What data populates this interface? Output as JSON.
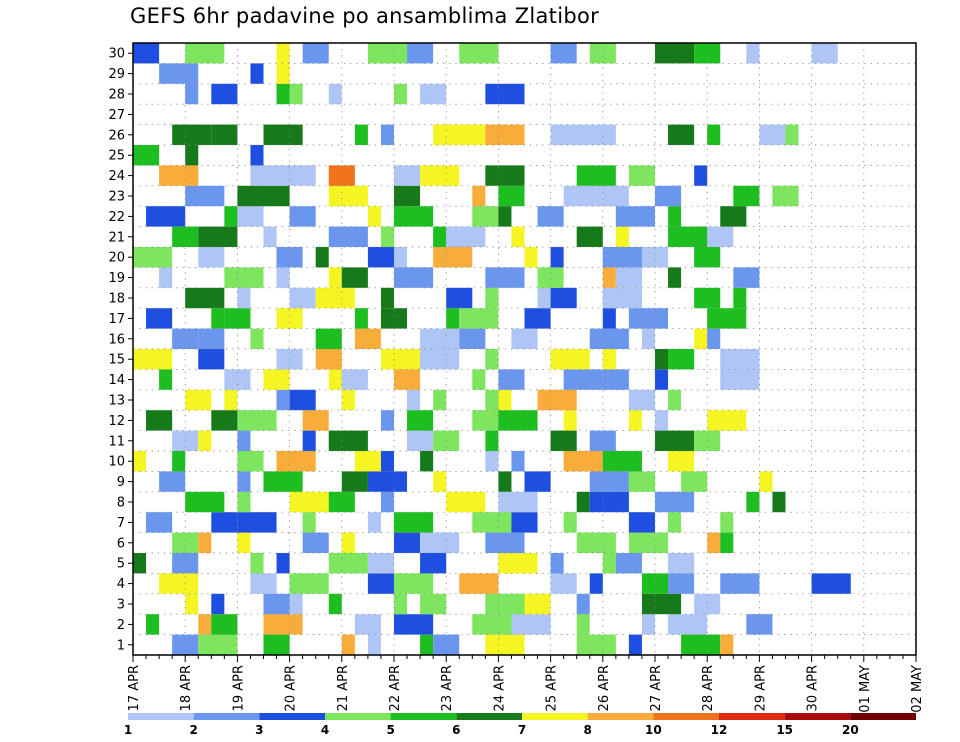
{
  "title": "GEFS 6hr padavine po ansamblima Zlatibor",
  "chart_data": {
    "type": "heatmap",
    "title": "GEFS 6hr padavine po ansamblima Zlatibor",
    "y_ticks": [
      "1",
      "2",
      "3",
      "4",
      "5",
      "6",
      "7",
      "8",
      "9",
      "10",
      "11",
      "12",
      "13",
      "14",
      "15",
      "16",
      "17",
      "18",
      "19",
      "20",
      "21",
      "22",
      "23",
      "24",
      "25",
      "26",
      "27",
      "28",
      "29",
      "30"
    ],
    "x_ticks": [
      "17 APR",
      "18 APR",
      "19 APR",
      "20 APR",
      "21 APR",
      "22 APR",
      "23 APR",
      "24 APR",
      "25 APR",
      "26 APR",
      "27 APR",
      "28 APR",
      "29 APR",
      "30 APR",
      "01 MAY",
      "02 MAY"
    ],
    "y_range": [
      0,
      30
    ],
    "x_range": [
      0,
      60
    ],
    "grid": true,
    "colorbar": {
      "labels": [
        "1",
        "2",
        "3",
        "4",
        "5",
        "6",
        "7",
        "8",
        "10",
        "12",
        "15",
        "20"
      ],
      "colors": [
        "#aec5f5",
        "#6b96ee",
        "#1f4fe0",
        "#7de55e",
        "#1cbe20",
        "#167a1a",
        "#f5f523",
        "#f8ad3a",
        "#f07319",
        "#e02a12",
        "#a80b0b",
        "#700000"
      ]
    },
    "cells": [
      [
        2,
        30,
        2
      ],
      [
        3,
        30,
        3
      ],
      [
        1,
        30,
        6
      ],
      [
        2,
        30,
        1
      ],
      [
        3,
        30,
        3
      ],
      [
        2,
        30,
        1
      ],
      [
        3,
        30,
        3
      ],
      [
        2,
        30,
        1
      ],
      [
        2,
        30,
        3
      ],
      [
        3,
        30,
        5
      ],
      [
        2,
        30,
        4
      ],
      [
        1,
        30,
        0
      ],
      [
        2,
        30,
        0
      ],
      [
        3,
        29,
        1
      ],
      [
        1,
        29,
        2
      ],
      [
        1,
        29,
        6
      ],
      [
        1,
        28,
        1
      ],
      [
        2,
        28,
        2
      ],
      [
        1,
        28,
        4
      ],
      [
        1,
        28,
        3
      ],
      [
        1,
        28,
        0
      ],
      [
        1,
        28,
        3
      ],
      [
        2,
        28,
        0
      ],
      [
        3,
        28,
        2
      ],
      [
        3,
        26,
        5
      ],
      [
        2,
        26,
        5
      ],
      [
        3,
        26,
        5
      ],
      [
        1,
        26,
        4
      ],
      [
        1,
        26,
        1
      ],
      [
        4,
        26,
        6
      ],
      [
        3,
        26,
        7
      ],
      [
        5,
        26,
        0
      ],
      [
        2,
        26,
        5
      ],
      [
        1,
        26,
        4
      ],
      [
        2,
        26,
        0
      ],
      [
        1,
        26,
        3
      ],
      [
        2,
        25,
        4
      ],
      [
        1,
        25,
        5
      ],
      [
        1,
        25,
        2
      ],
      [
        3,
        24,
        7
      ],
      [
        5,
        24,
        0
      ],
      [
        2,
        24,
        8
      ],
      [
        2,
        24,
        0
      ],
      [
        3,
        24,
        6
      ],
      [
        3,
        24,
        5
      ],
      [
        3,
        24,
        4
      ],
      [
        2,
        24,
        3
      ],
      [
        1,
        24,
        2
      ],
      [
        3,
        23,
        1
      ],
      [
        4,
        23,
        5
      ],
      [
        1,
        23,
        6
      ],
      [
        2,
        23,
        6
      ],
      [
        2,
        23,
        5
      ],
      [
        1,
        23,
        7
      ],
      [
        2,
        23,
        4
      ],
      [
        3,
        23,
        0
      ],
      [
        2,
        23,
        0
      ],
      [
        2,
        23,
        1
      ],
      [
        2,
        23,
        4
      ],
      [
        2,
        23,
        3
      ],
      [
        3,
        22,
        2
      ],
      [
        1,
        22,
        4
      ],
      [
        2,
        22,
        0
      ],
      [
        2,
        22,
        1
      ],
      [
        1,
        22,
        6
      ],
      [
        3,
        22,
        4
      ],
      [
        2,
        22,
        3
      ],
      [
        1,
        22,
        5
      ],
      [
        2,
        22,
        1
      ],
      [
        3,
        22,
        1
      ],
      [
        1,
        22,
        4
      ],
      [
        2,
        22,
        5
      ],
      [
        2,
        21,
        4
      ],
      [
        3,
        21,
        5
      ],
      [
        1,
        21,
        0
      ],
      [
        3,
        21,
        1
      ],
      [
        1,
        21,
        3
      ],
      [
        1,
        21,
        4
      ],
      [
        3,
        21,
        0
      ],
      [
        1,
        21,
        6
      ],
      [
        2,
        21,
        5
      ],
      [
        1,
        21,
        6
      ],
      [
        3,
        21,
        4
      ],
      [
        2,
        21,
        0
      ],
      [
        3,
        20,
        3
      ],
      [
        2,
        20,
        0
      ],
      [
        2,
        20,
        1
      ],
      [
        1,
        20,
        5
      ],
      [
        2,
        20,
        2
      ],
      [
        1,
        20,
        0
      ],
      [
        3,
        20,
        7
      ],
      [
        1,
        20,
        6
      ],
      [
        1,
        20,
        2
      ],
      [
        3,
        20,
        1
      ],
      [
        2,
        20,
        0
      ],
      [
        2,
        20,
        4
      ],
      [
        1,
        19,
        0
      ],
      [
        3,
        19,
        3
      ],
      [
        1,
        19,
        0
      ],
      [
        1,
        19,
        6
      ],
      [
        2,
        19,
        5
      ],
      [
        3,
        19,
        1
      ],
      [
        3,
        19,
        1
      ],
      [
        2,
        19,
        3
      ],
      [
        1,
        19,
        7
      ],
      [
        2,
        19,
        0
      ],
      [
        1,
        19,
        5
      ],
      [
        2,
        19,
        1
      ],
      [
        3,
        18,
        5
      ],
      [
        1,
        18,
        0
      ],
      [
        2,
        18,
        0
      ],
      [
        3,
        18,
        6
      ],
      [
        1,
        18,
        5
      ],
      [
        2,
        18,
        2
      ],
      [
        1,
        18,
        3
      ],
      [
        1,
        18,
        0
      ],
      [
        2,
        18,
        2
      ],
      [
        3,
        18,
        0
      ],
      [
        2,
        18,
        4
      ],
      [
        1,
        18,
        4
      ],
      [
        2,
        17,
        2
      ],
      [
        1,
        17,
        4
      ],
      [
        2,
        17,
        4
      ],
      [
        2,
        17,
        6
      ],
      [
        1,
        17,
        4
      ],
      [
        2,
        17,
        5
      ],
      [
        1,
        17,
        4
      ],
      [
        3,
        17,
        3
      ],
      [
        2,
        17,
        2
      ],
      [
        1,
        17,
        2
      ],
      [
        3,
        17,
        1
      ],
      [
        3,
        17,
        4
      ],
      [
        2,
        16,
        1
      ],
      [
        2,
        16,
        1
      ],
      [
        1,
        16,
        3
      ],
      [
        2,
        16,
        4
      ],
      [
        2,
        16,
        7
      ],
      [
        3,
        16,
        0
      ],
      [
        2,
        16,
        1
      ],
      [
        2,
        16,
        0
      ],
      [
        3,
        16,
        1
      ],
      [
        1,
        16,
        0
      ],
      [
        1,
        16,
        6
      ],
      [
        1,
        16,
        1
      ],
      [
        3,
        15,
        6
      ],
      [
        2,
        15,
        2
      ],
      [
        2,
        15,
        0
      ],
      [
        2,
        15,
        7
      ],
      [
        3,
        15,
        6
      ],
      [
        3,
        15,
        0
      ],
      [
        1,
        15,
        3
      ],
      [
        3,
        15,
        6
      ],
      [
        1,
        15,
        6
      ],
      [
        1,
        15,
        5
      ],
      [
        2,
        15,
        4
      ],
      [
        3,
        15,
        0
      ],
      [
        1,
        14,
        4
      ],
      [
        2,
        14,
        0
      ],
      [
        2,
        14,
        6
      ],
      [
        1,
        14,
        6
      ],
      [
        2,
        14,
        0
      ],
      [
        2,
        14,
        7
      ],
      [
        1,
        14,
        3
      ],
      [
        2,
        14,
        1
      ],
      [
        3,
        14,
        1
      ],
      [
        2,
        14,
        1
      ],
      [
        1,
        14,
        2
      ],
      [
        3,
        14,
        0
      ],
      [
        2,
        13,
        6
      ],
      [
        1,
        13,
        6
      ],
      [
        1,
        13,
        1
      ],
      [
        2,
        13,
        2
      ],
      [
        1,
        13,
        6
      ],
      [
        1,
        13,
        0
      ],
      [
        1,
        13,
        3
      ],
      [
        1,
        13,
        3
      ],
      [
        1,
        13,
        6
      ],
      [
        3,
        13,
        7
      ],
      [
        2,
        13,
        0
      ],
      [
        1,
        13,
        3
      ],
      [
        2,
        12,
        5
      ],
      [
        2,
        12,
        5
      ],
      [
        3,
        12,
        3
      ],
      [
        2,
        12,
        7
      ],
      [
        1,
        12,
        1
      ],
      [
        2,
        12,
        4
      ],
      [
        2,
        12,
        3
      ],
      [
        3,
        12,
        4
      ],
      [
        1,
        12,
        6
      ],
      [
        1,
        12,
        6
      ],
      [
        1,
        12,
        0
      ],
      [
        3,
        12,
        6
      ],
      [
        2,
        11,
        0
      ],
      [
        1,
        11,
        6
      ],
      [
        1,
        11,
        1
      ],
      [
        1,
        11,
        2
      ],
      [
        3,
        11,
        5
      ],
      [
        2,
        11,
        0
      ],
      [
        2,
        11,
        3
      ],
      [
        1,
        11,
        4
      ],
      [
        2,
        11,
        5
      ],
      [
        2,
        11,
        1
      ],
      [
        3,
        11,
        5
      ],
      [
        2,
        11,
        3
      ],
      [
        1,
        10,
        6
      ],
      [
        1,
        10,
        4
      ],
      [
        2,
        10,
        3
      ],
      [
        3,
        10,
        7
      ],
      [
        2,
        10,
        6
      ],
      [
        1,
        10,
        2
      ],
      [
        1,
        10,
        5
      ],
      [
        1,
        10,
        0
      ],
      [
        1,
        10,
        1
      ],
      [
        3,
        10,
        7
      ],
      [
        3,
        10,
        4
      ],
      [
        2,
        10,
        6
      ],
      [
        2,
        9,
        1
      ],
      [
        1,
        9,
        1
      ],
      [
        3,
        9,
        4
      ],
      [
        2,
        9,
        5
      ],
      [
        3,
        9,
        2
      ],
      [
        1,
        9,
        6
      ],
      [
        1,
        9,
        5
      ],
      [
        2,
        9,
        2
      ],
      [
        3,
        9,
        1
      ],
      [
        2,
        9,
        3
      ],
      [
        2,
        9,
        3
      ],
      [
        1,
        9,
        6
      ],
      [
        3,
        8,
        4
      ],
      [
        1,
        8,
        3
      ],
      [
        3,
        8,
        6
      ],
      [
        2,
        8,
        4
      ],
      [
        1,
        8,
        1
      ],
      [
        3,
        8,
        6
      ],
      [
        3,
        8,
        0
      ],
      [
        1,
        8,
        5
      ],
      [
        3,
        8,
        2
      ],
      [
        3,
        8,
        1
      ],
      [
        1,
        8,
        4
      ],
      [
        1,
        8,
        5
      ],
      [
        2,
        7,
        1
      ],
      [
        2,
        7,
        2
      ],
      [
        3,
        7,
        2
      ],
      [
        1,
        7,
        3
      ],
      [
        1,
        7,
        0
      ],
      [
        3,
        7,
        4
      ],
      [
        3,
        7,
        3
      ],
      [
        2,
        7,
        2
      ],
      [
        1,
        7,
        3
      ],
      [
        2,
        7,
        2
      ],
      [
        1,
        7,
        3
      ],
      [
        1,
        7,
        3
      ],
      [
        2,
        6,
        3
      ],
      [
        1,
        6,
        7
      ],
      [
        1,
        6,
        6
      ],
      [
        2,
        6,
        1
      ],
      [
        1,
        6,
        6
      ],
      [
        2,
        6,
        2
      ],
      [
        3,
        6,
        0
      ],
      [
        3,
        6,
        1
      ],
      [
        3,
        6,
        3
      ],
      [
        3,
        6,
        3
      ],
      [
        1,
        6,
        7
      ],
      [
        1,
        6,
        4
      ],
      [
        1,
        5,
        5
      ],
      [
        2,
        5,
        1
      ],
      [
        1,
        5,
        3
      ],
      [
        1,
        5,
        2
      ],
      [
        3,
        5,
        3
      ],
      [
        2,
        5,
        0
      ],
      [
        2,
        5,
        2
      ],
      [
        3,
        5,
        6
      ],
      [
        1,
        5,
        1
      ],
      [
        1,
        5,
        3
      ],
      [
        2,
        5,
        1
      ],
      [
        2,
        5,
        0
      ],
      [
        3,
        4,
        6
      ],
      [
        2,
        4,
        0
      ],
      [
        3,
        4,
        3
      ],
      [
        2,
        4,
        2
      ],
      [
        3,
        4,
        3
      ],
      [
        3,
        4,
        7
      ],
      [
        2,
        4,
        0
      ],
      [
        1,
        4,
        2
      ],
      [
        2,
        4,
        4
      ],
      [
        2,
        4,
        1
      ],
      [
        3,
        4,
        1
      ],
      [
        3,
        4,
        2
      ],
      [
        1,
        3,
        6
      ],
      [
        1,
        3,
        2
      ],
      [
        2,
        3,
        1
      ],
      [
        1,
        3,
        0
      ],
      [
        1,
        3,
        4
      ],
      [
        1,
        3,
        3
      ],
      [
        2,
        3,
        3
      ],
      [
        3,
        3,
        3
      ],
      [
        2,
        3,
        6
      ],
      [
        1,
        3,
        1
      ],
      [
        3,
        3,
        5
      ],
      [
        2,
        3,
        0
      ],
      [
        1,
        2,
        4
      ],
      [
        1,
        2,
        7
      ],
      [
        2,
        2,
        4
      ],
      [
        3,
        2,
        7
      ],
      [
        2,
        2,
        0
      ],
      [
        3,
        2,
        2
      ],
      [
        3,
        2,
        3
      ],
      [
        3,
        2,
        0
      ],
      [
        1,
        2,
        3
      ],
      [
        1,
        2,
        0
      ],
      [
        3,
        2,
        0
      ],
      [
        2,
        2,
        1
      ],
      [
        2,
        1,
        1
      ],
      [
        3,
        1,
        3
      ],
      [
        2,
        1,
        4
      ],
      [
        1,
        1,
        7
      ],
      [
        1,
        1,
        0
      ],
      [
        1,
        1,
        4
      ],
      [
        2,
        1,
        1
      ],
      [
        3,
        1,
        6
      ],
      [
        3,
        1,
        3
      ],
      [
        1,
        1,
        2
      ],
      [
        3,
        1,
        4
      ],
      [
        1,
        1,
        7
      ]
    ]
  }
}
